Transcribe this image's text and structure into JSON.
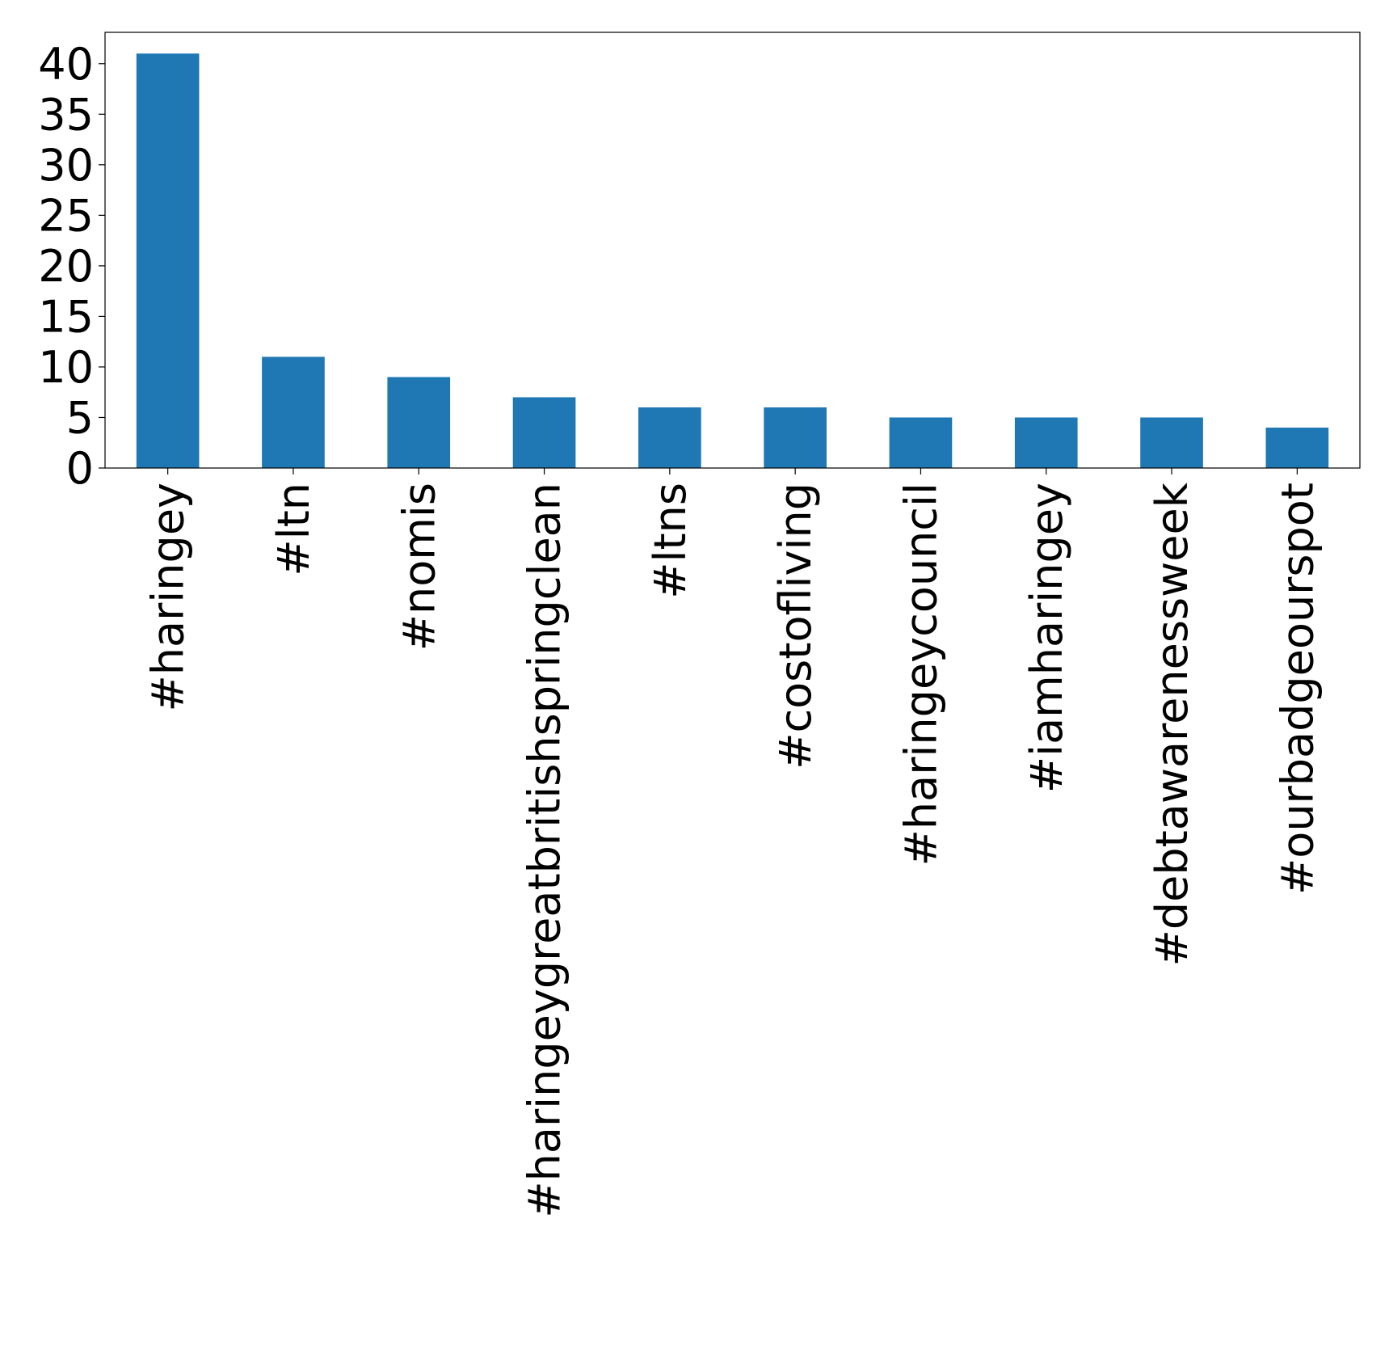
{
  "chart_data": {
    "type": "bar",
    "categories": [
      "#haringey",
      "#ltn",
      "#nomis",
      "#haringeygreatbritishspringclean",
      "#ltns",
      "#costofliving",
      "#haringeycouncil",
      "#iamharingey",
      "#debtawarenessweek",
      "#ourbadgeourspot"
    ],
    "values": [
      41,
      11,
      9,
      7,
      6,
      6,
      5,
      5,
      5,
      4
    ],
    "yticks": [
      0,
      5,
      10,
      15,
      20,
      25,
      30,
      35,
      40
    ],
    "ylim": [
      0,
      43.1
    ],
    "title": "",
    "xlabel": "",
    "ylabel": "",
    "bar_color": "#1f77b4",
    "grid": false
  }
}
